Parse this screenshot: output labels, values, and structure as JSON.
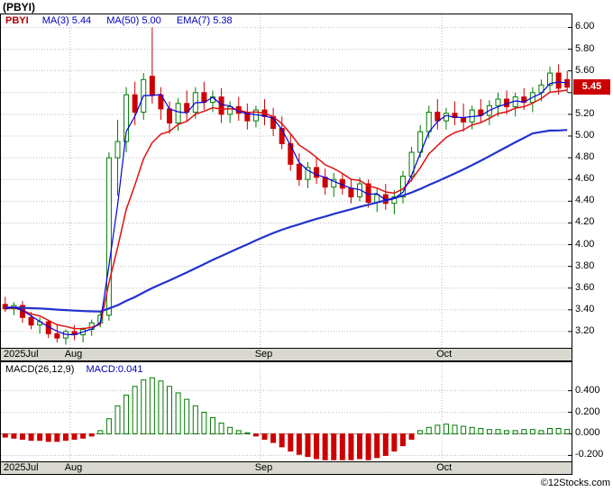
{
  "title": "(PBYI)",
  "copyright": "©12Stocks.com",
  "colors": {
    "up": "#007a00",
    "down": "#cc0000",
    "ma3": "#0000e0",
    "ma50": "#2233cc",
    "ema7": "#e01010",
    "grid": "#bcbcbc",
    "symbol": "#b00000",
    "indicator_text": "#0000bb",
    "macd_value_text": "#0000bb",
    "axis_strip_bg": "#d8d8d0",
    "price_tag_bg": "#cc0000"
  },
  "legend": {
    "symbol": "PBYI",
    "items": [
      {
        "label": "MA(3)",
        "value": "5.44"
      },
      {
        "label": "MA(50)",
        "value": "5.00"
      },
      {
        "label": "EMA(7)",
        "value": "5.38"
      }
    ]
  },
  "macd_legend": {
    "name": "MACD(26,12,9)",
    "value_label": "MACD:0.041"
  },
  "last_price": {
    "label": "5.45",
    "value": 5.45
  },
  "chart_data": [
    {
      "type": "candlestick",
      "title": "PBYI daily price with MA(3), MA(50), EMA(7)",
      "ylim": [
        3.05,
        6.12
      ],
      "yticks": [
        "6.00",
        "5.80",
        "5.60",
        "5.20",
        "5.00",
        "4.80",
        "4.60",
        "4.40",
        "4.20",
        "4.00",
        "3.80",
        "3.60",
        "3.40",
        "3.20"
      ],
      "months": [
        {
          "label": "2025Jul",
          "start_index": 0
        },
        {
          "label": "Aug",
          "start_index": 8
        },
        {
          "label": "Sep",
          "start_index": 30
        },
        {
          "label": "Oct",
          "start_index": 51
        }
      ],
      "overlays": [
        {
          "name": "MA(3)",
          "last": 5.44
        },
        {
          "name": "MA(50)",
          "last": 5.0
        },
        {
          "name": "EMA(7)",
          "last": 5.38
        }
      ],
      "candles": {
        "open": [
          3.45,
          3.41,
          3.44,
          3.33,
          3.26,
          3.29,
          3.18,
          3.14,
          3.2,
          3.17,
          3.22,
          3.28,
          3.35,
          4.8,
          4.95,
          5.38,
          5.22,
          5.55,
          5.38,
          5.25,
          5.12,
          5.3,
          5.22,
          5.4,
          5.31,
          5.36,
          5.2,
          5.27,
          5.21,
          5.14,
          5.24,
          5.18,
          5.07,
          4.93,
          4.74,
          4.6,
          4.71,
          4.62,
          4.53,
          4.6,
          4.52,
          4.44,
          4.56,
          4.39,
          4.46,
          4.38,
          4.44,
          4.63,
          4.85,
          5.04,
          5.22,
          5.14,
          5.21,
          5.17,
          5.13,
          5.24,
          5.19,
          5.28,
          5.34,
          5.27,
          5.36,
          5.31,
          5.4,
          5.47,
          5.58,
          5.52
        ],
        "high": [
          3.52,
          3.47,
          3.48,
          3.38,
          3.33,
          3.31,
          3.26,
          3.22,
          3.26,
          3.24,
          3.31,
          3.38,
          4.85,
          5.15,
          5.45,
          5.5,
          5.58,
          6.0,
          5.45,
          5.32,
          5.35,
          5.42,
          5.45,
          5.5,
          5.42,
          5.44,
          5.32,
          5.36,
          5.3,
          5.28,
          5.34,
          5.26,
          5.18,
          5.02,
          4.84,
          4.76,
          4.8,
          4.7,
          4.66,
          4.66,
          4.6,
          4.62,
          4.6,
          4.52,
          4.56,
          4.5,
          4.68,
          4.9,
          5.1,
          5.28,
          5.34,
          5.26,
          5.32,
          5.3,
          5.28,
          5.34,
          5.33,
          5.4,
          5.42,
          5.4,
          5.44,
          5.45,
          5.52,
          5.64,
          5.66,
          5.6
        ],
        "low": [
          3.38,
          3.35,
          3.28,
          3.22,
          3.18,
          3.14,
          3.1,
          3.08,
          3.12,
          3.1,
          3.16,
          3.24,
          3.3,
          4.45,
          4.85,
          5.1,
          5.15,
          5.3,
          5.15,
          5.02,
          5.05,
          5.14,
          5.16,
          5.24,
          5.22,
          5.12,
          5.12,
          5.14,
          5.06,
          5.08,
          5.1,
          5.0,
          4.88,
          4.68,
          4.54,
          4.52,
          4.56,
          4.46,
          4.44,
          4.46,
          4.38,
          4.4,
          4.34,
          4.3,
          4.32,
          4.28,
          4.38,
          4.58,
          4.8,
          4.98,
          5.06,
          5.06,
          5.1,
          5.04,
          5.06,
          5.12,
          5.1,
          5.18,
          5.2,
          5.18,
          5.24,
          5.22,
          5.32,
          5.4,
          5.38,
          5.4
        ],
        "close": [
          3.41,
          3.44,
          3.33,
          3.26,
          3.29,
          3.18,
          3.14,
          3.2,
          3.17,
          3.22,
          3.28,
          3.35,
          4.8,
          4.95,
          5.38,
          5.22,
          5.52,
          5.38,
          5.25,
          5.12,
          5.3,
          5.22,
          5.4,
          5.31,
          5.36,
          5.2,
          5.27,
          5.21,
          5.14,
          5.24,
          5.18,
          5.07,
          4.93,
          4.74,
          4.6,
          4.71,
          4.62,
          4.53,
          4.6,
          4.52,
          4.44,
          4.56,
          4.39,
          4.46,
          4.38,
          4.44,
          4.63,
          4.85,
          5.04,
          5.22,
          5.14,
          5.21,
          5.17,
          5.13,
          5.24,
          5.19,
          5.28,
          5.34,
          5.27,
          5.36,
          5.31,
          5.4,
          5.47,
          5.58,
          5.44,
          5.45
        ]
      }
    },
    {
      "type": "bar",
      "title": "MACD(26,12,9) histogram",
      "ylim": [
        -0.255,
        0.664
      ],
      "yticks": [
        "0.400",
        "0.200",
        "0.000",
        "-0.200"
      ],
      "last": 0.041,
      "values": [
        -0.03,
        -0.04,
        -0.05,
        -0.06,
        -0.06,
        -0.07,
        -0.07,
        -0.06,
        -0.05,
        -0.04,
        -0.02,
        0.03,
        0.14,
        0.26,
        0.36,
        0.44,
        0.5,
        0.52,
        0.49,
        0.44,
        0.38,
        0.32,
        0.26,
        0.2,
        0.15,
        0.1,
        0.06,
        0.03,
        0.01,
        -0.02,
        -0.05,
        -0.08,
        -0.12,
        -0.16,
        -0.19,
        -0.21,
        -0.23,
        -0.24,
        -0.24,
        -0.24,
        -0.24,
        -0.23,
        -0.24,
        -0.22,
        -0.2,
        -0.16,
        -0.11,
        -0.05,
        0.03,
        0.06,
        0.08,
        0.09,
        0.08,
        0.07,
        0.06,
        0.05,
        0.04,
        0.04,
        0.03,
        0.03,
        0.04,
        0.04,
        0.03,
        0.05,
        0.05,
        0.041
      ]
    }
  ]
}
